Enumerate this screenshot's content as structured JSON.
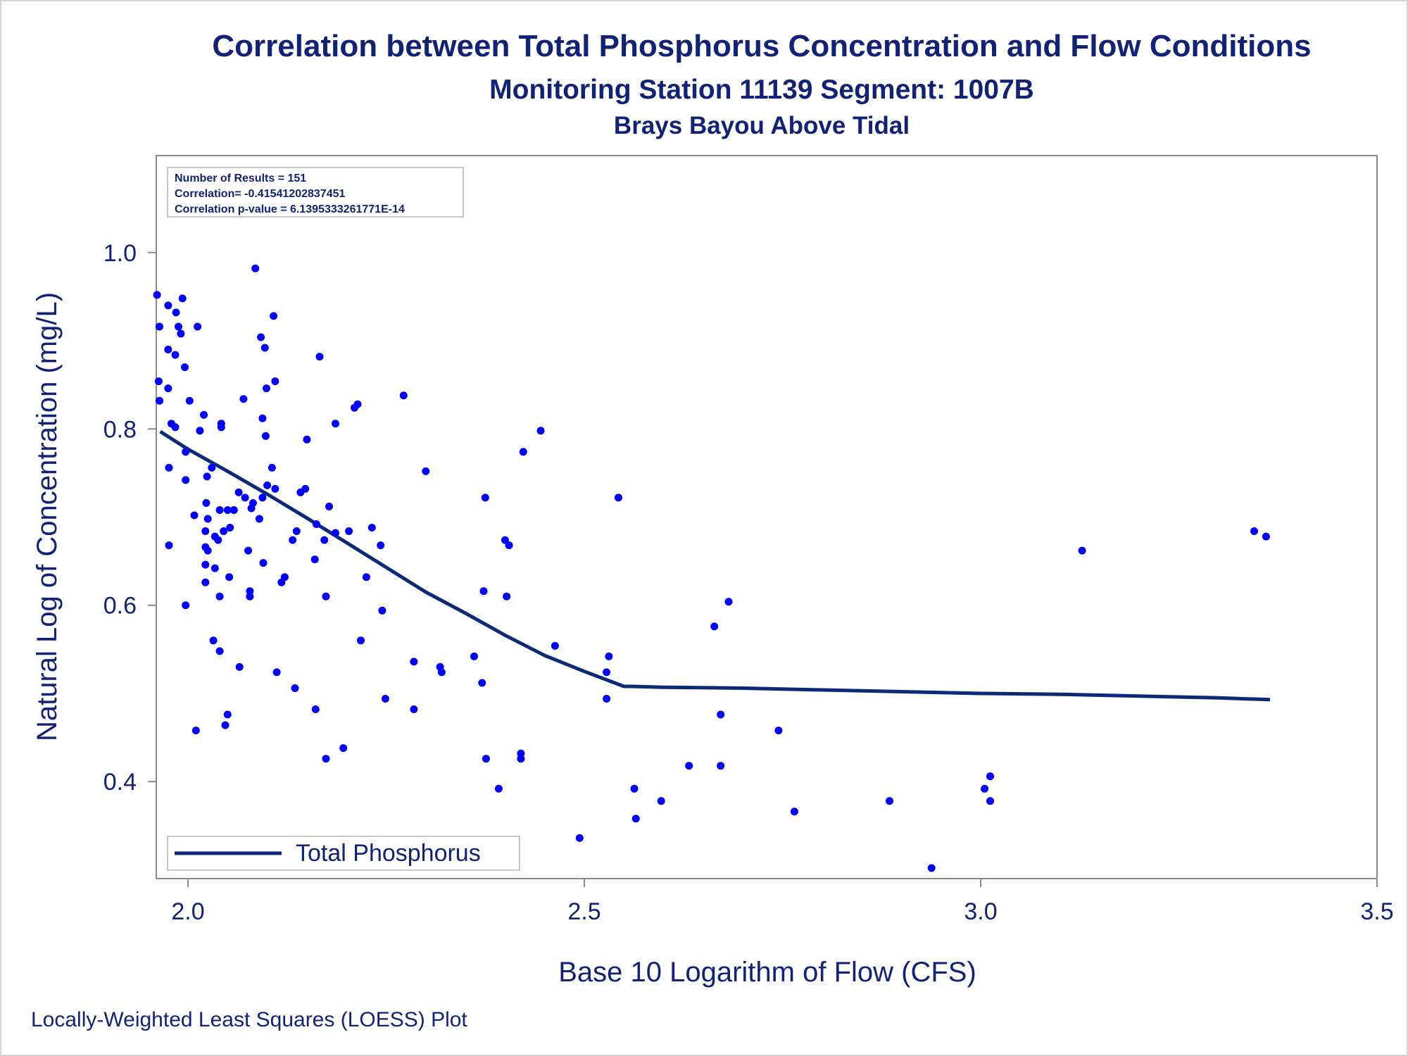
{
  "title": "Correlation between Total Phosphorus Concentration and Flow Conditions",
  "subtitle1": "Monitoring Station 11139 Segment: 1007B",
  "subtitle2": "Brays Bayou Above Tidal",
  "footnote": "Locally-Weighted Least Squares (LOESS) Plot",
  "inset": {
    "line1": "Number of Results = 151",
    "line2": "Correlation= -0.41541202837451",
    "line3": "Correlation p-value = 6.1395333261771E-14"
  },
  "colors": {
    "text": "#112277",
    "point": "#0000ff",
    "line": "#0d2a78",
    "frame": "#8a8a8a"
  },
  "chart_data": {
    "type": "scatter",
    "xlabel": "Base 10 Logarithm of Flow (CFS)",
    "ylabel": "Natural Log of Concentration (mg/L)",
    "xlim": [
      1.96,
      3.5
    ],
    "ylim": [
      0.29,
      1.11
    ],
    "xticks": [
      "2.0",
      "2.5",
      "3.0",
      "3.5"
    ],
    "xtick_values": [
      2.0,
      2.5,
      3.0,
      3.5
    ],
    "yticks": [
      "0.4",
      "0.6",
      "0.8",
      "1.0"
    ],
    "ytick_values": [
      0.4,
      0.6,
      0.8,
      1.0
    ],
    "grid": false,
    "legend": {
      "position": "bottom-left",
      "entries": [
        "Total Phosphorus"
      ]
    },
    "series": [
      {
        "name": "Total Phosphorus",
        "kind": "loess-line",
        "points": [
          [
            1.965,
            0.797
          ],
          [
            2.0,
            0.777
          ],
          [
            2.05,
            0.752
          ],
          [
            2.1,
            0.726
          ],
          [
            2.15,
            0.699
          ],
          [
            2.2,
            0.671
          ],
          [
            2.25,
            0.643
          ],
          [
            2.3,
            0.615
          ],
          [
            2.35,
            0.591
          ],
          [
            2.4,
            0.566
          ],
          [
            2.45,
            0.543
          ],
          [
            2.5,
            0.525
          ],
          [
            2.55,
            0.508
          ],
          [
            2.56,
            0.508
          ],
          [
            2.6,
            0.507
          ],
          [
            2.7,
            0.506
          ],
          [
            2.8,
            0.504
          ],
          [
            2.9,
            0.502
          ],
          [
            3.0,
            0.5
          ],
          [
            3.1,
            0.499
          ],
          [
            3.2,
            0.497
          ],
          [
            3.3,
            0.495
          ],
          [
            3.365,
            0.493
          ]
        ]
      },
      {
        "name": "observations",
        "kind": "points",
        "points": [
          [
            1.993,
            0.948
          ],
          [
            1.975,
            0.94
          ],
          [
            1.961,
            0.952
          ],
          [
            1.964,
            0.916
          ],
          [
            1.985,
            0.932
          ],
          [
            1.988,
            0.916
          ],
          [
            1.991,
            0.908
          ],
          [
            2.012,
            0.916
          ],
          [
            1.975,
            0.89
          ],
          [
            1.984,
            0.884
          ],
          [
            1.996,
            0.87
          ],
          [
            1.963,
            0.854
          ],
          [
            1.975,
            0.846
          ],
          [
            2.002,
            0.832
          ],
          [
            1.964,
            0.832
          ],
          [
            1.979,
            0.806
          ],
          [
            1.984,
            0.802
          ],
          [
            2.02,
            0.816
          ],
          [
            2.042,
            0.806
          ],
          [
            2.042,
            0.802
          ],
          [
            2.015,
            0.798
          ],
          [
            1.997,
            0.774
          ],
          [
            1.976,
            0.756
          ],
          [
            1.997,
            0.742
          ],
          [
            2.024,
            0.746
          ],
          [
            2.03,
            0.756
          ],
          [
            2.023,
            0.716
          ],
          [
            2.008,
            0.702
          ],
          [
            2.025,
            0.698
          ],
          [
            2.04,
            0.708
          ],
          [
            2.05,
            0.708
          ],
          [
            2.058,
            0.708
          ],
          [
            2.045,
            0.684
          ],
          [
            2.038,
            0.674
          ],
          [
            2.034,
            0.678
          ],
          [
            2.025,
            0.662
          ],
          [
            2.022,
            0.684
          ],
          [
            2.053,
            0.688
          ],
          [
            2.064,
            0.728
          ],
          [
            2.022,
            0.646
          ],
          [
            2.034,
            0.642
          ],
          [
            2.022,
            0.626
          ],
          [
            2.052,
            0.632
          ],
          [
            2.04,
            0.61
          ],
          [
            1.976,
            0.668
          ],
          [
            1.997,
            0.6
          ],
          [
            2.032,
            0.56
          ],
          [
            2.04,
            0.548
          ],
          [
            2.065,
            0.53
          ],
          [
            2.05,
            0.476
          ],
          [
            2.047,
            0.464
          ],
          [
            2.01,
            0.458
          ],
          [
            2.022,
            0.666
          ],
          [
            2.085,
            0.982
          ],
          [
            2.092,
            0.904
          ],
          [
            2.097,
            0.892
          ],
          [
            2.108,
            0.928
          ],
          [
            2.11,
            0.854
          ],
          [
            2.099,
            0.846
          ],
          [
            2.07,
            0.834
          ],
          [
            2.094,
            0.812
          ],
          [
            2.098,
            0.792
          ],
          [
            2.106,
            0.756
          ],
          [
            2.1,
            0.736
          ],
          [
            2.11,
            0.732
          ],
          [
            2.072,
            0.722
          ],
          [
            2.082,
            0.716
          ],
          [
            2.08,
            0.71
          ],
          [
            2.09,
            0.698
          ],
          [
            2.094,
            0.722
          ],
          [
            2.076,
            0.662
          ],
          [
            2.095,
            0.648
          ],
          [
            2.078,
            0.616
          ],
          [
            2.078,
            0.61
          ],
          [
            2.112,
            0.524
          ],
          [
            2.135,
            0.506
          ],
          [
            2.118,
            0.626
          ],
          [
            2.122,
            0.632
          ],
          [
            2.132,
            0.674
          ],
          [
            2.137,
            0.684
          ],
          [
            2.142,
            0.728
          ],
          [
            2.148,
            0.732
          ],
          [
            2.15,
            0.788
          ],
          [
            2.166,
            0.882
          ],
          [
            2.16,
            0.652
          ],
          [
            2.162,
            0.692
          ],
          [
            2.172,
            0.674
          ],
          [
            2.174,
            0.61
          ],
          [
            2.178,
            0.712
          ],
          [
            2.186,
            0.682
          ],
          [
            2.186,
            0.806
          ],
          [
            2.203,
            0.684
          ],
          [
            2.21,
            0.824
          ],
          [
            2.214,
            0.828
          ],
          [
            2.196,
            0.438
          ],
          [
            2.174,
            0.426
          ],
          [
            2.161,
            0.482
          ],
          [
            2.225,
            0.632
          ],
          [
            2.232,
            0.688
          ],
          [
            2.243,
            0.668
          ],
          [
            2.218,
            0.56
          ],
          [
            2.245,
            0.594
          ],
          [
            2.249,
            0.494
          ],
          [
            2.272,
            0.838
          ],
          [
            2.285,
            0.536
          ],
          [
            2.285,
            0.482
          ],
          [
            2.3,
            0.752
          ],
          [
            2.318,
            0.53
          ],
          [
            2.32,
            0.524
          ],
          [
            2.361,
            0.542
          ],
          [
            2.371,
            0.512
          ],
          [
            2.373,
            0.616
          ],
          [
            2.375,
            0.722
          ],
          [
            2.376,
            0.426
          ],
          [
            2.392,
            0.392
          ],
          [
            2.4,
            0.674
          ],
          [
            2.405,
            0.668
          ],
          [
            2.402,
            0.61
          ],
          [
            2.423,
            0.774
          ],
          [
            2.42,
            0.432
          ],
          [
            2.42,
            0.426
          ],
          [
            2.445,
            0.798
          ],
          [
            2.463,
            0.554
          ],
          [
            2.494,
            0.336
          ],
          [
            2.531,
            0.542
          ],
          [
            2.528,
            0.524
          ],
          [
            2.528,
            0.494
          ],
          [
            2.543,
            0.722
          ],
          [
            2.563,
            0.392
          ],
          [
            2.565,
            0.358
          ],
          [
            2.597,
            0.378
          ],
          [
            2.632,
            0.418
          ],
          [
            2.664,
            0.576
          ],
          [
            2.672,
            0.476
          ],
          [
            2.672,
            0.418
          ],
          [
            2.682,
            0.604
          ],
          [
            2.745,
            0.458
          ],
          [
            2.765,
            0.366
          ],
          [
            2.885,
            0.378
          ],
          [
            2.938,
            0.302
          ],
          [
            3.005,
            0.392
          ],
          [
            3.012,
            0.406
          ],
          [
            3.012,
            0.378
          ],
          [
            3.128,
            0.662
          ],
          [
            3.345,
            0.684
          ],
          [
            3.36,
            0.678
          ]
        ]
      }
    ]
  }
}
